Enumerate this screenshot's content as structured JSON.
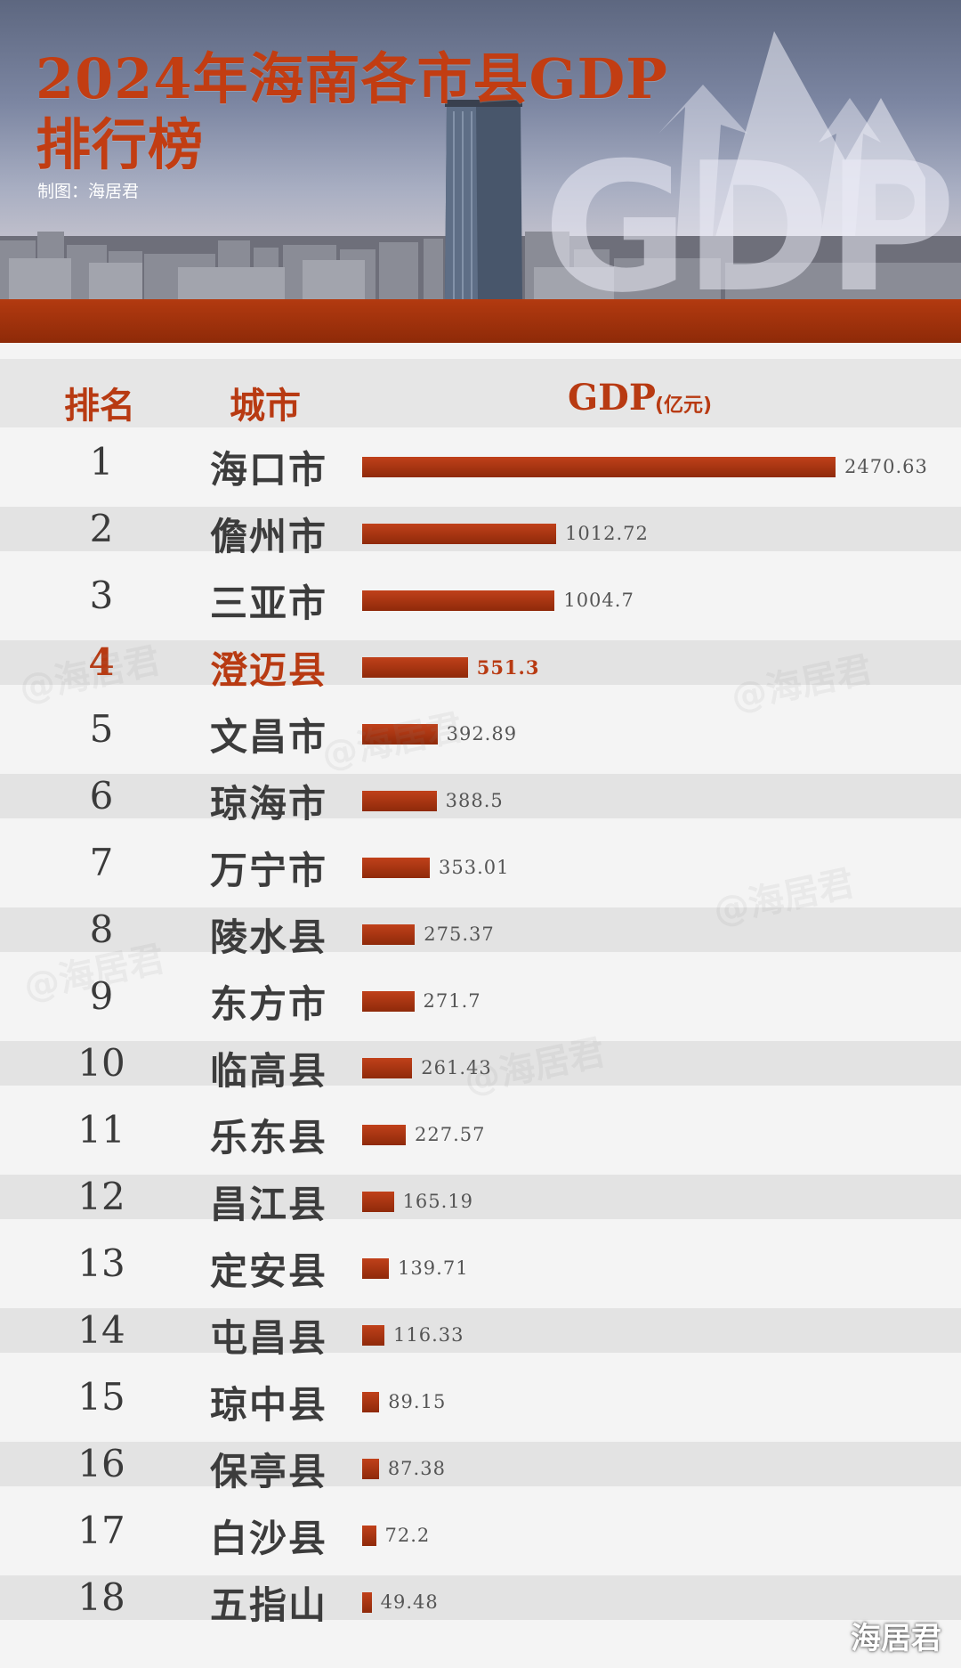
{
  "header": {
    "title_line1": "2024年海南各市县GDP",
    "title_line2": "排行榜",
    "credit": "制图：海居君",
    "gdp_watermark": "GDP"
  },
  "table": {
    "col_rank": "排名",
    "col_city": "城市",
    "col_gdp": "GDP",
    "col_gdp_unit": "(亿元)"
  },
  "watermark_text": "@海居君",
  "footer_brand": "海居君",
  "colors": {
    "accent": "#b83a12",
    "bar": "#a8350f",
    "row_alt": "#e3e3e3"
  },
  "chart_data": {
    "type": "bar",
    "orientation": "horizontal",
    "unit": "亿元",
    "highlight_rank": 4,
    "rows": [
      {
        "rank": "1",
        "city": "海口市",
        "value": 2470.63,
        "label": "2470.63"
      },
      {
        "rank": "2",
        "city": "儋州市",
        "value": 1012.72,
        "label": "1012.72"
      },
      {
        "rank": "3",
        "city": "三亚市",
        "value": 1004.7,
        "label": "1004.7"
      },
      {
        "rank": "4",
        "city": "澄迈县",
        "value": 551.3,
        "label": "551.3"
      },
      {
        "rank": "5",
        "city": "文昌市",
        "value": 392.89,
        "label": "392.89"
      },
      {
        "rank": "6",
        "city": "琼海市",
        "value": 388.5,
        "label": "388.5"
      },
      {
        "rank": "7",
        "city": "万宁市",
        "value": 353.01,
        "label": "353.01"
      },
      {
        "rank": "8",
        "city": "陵水县",
        "value": 275.37,
        "label": "275.37"
      },
      {
        "rank": "9",
        "city": "东方市",
        "value": 271.7,
        "label": "271.7"
      },
      {
        "rank": "10",
        "city": "临高县",
        "value": 261.43,
        "label": "261.43"
      },
      {
        "rank": "11",
        "city": "乐东县",
        "value": 227.57,
        "label": "227.57"
      },
      {
        "rank": "12",
        "city": "昌江县",
        "value": 165.19,
        "label": "165.19"
      },
      {
        "rank": "13",
        "city": "定安县",
        "value": 139.71,
        "label": "139.71"
      },
      {
        "rank": "14",
        "city": "屯昌县",
        "value": 116.33,
        "label": "116.33"
      },
      {
        "rank": "15",
        "city": "琼中县",
        "value": 89.15,
        "label": "89.15"
      },
      {
        "rank": "16",
        "city": "保亭县",
        "value": 87.38,
        "label": "87.38"
      },
      {
        "rank": "17",
        "city": "白沙县",
        "value": 72.2,
        "label": "72.2"
      },
      {
        "rank": "18",
        "city": "五指山",
        "value": 49.48,
        "label": "49.48"
      }
    ]
  }
}
